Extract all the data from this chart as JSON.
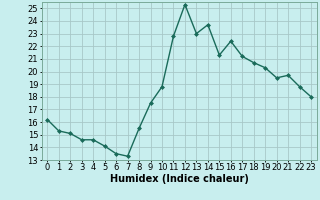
{
  "x": [
    0,
    1,
    2,
    3,
    4,
    5,
    6,
    7,
    8,
    9,
    10,
    11,
    12,
    13,
    14,
    15,
    16,
    17,
    18,
    19,
    20,
    21,
    22,
    23
  ],
  "y": [
    16.2,
    15.3,
    15.1,
    14.6,
    14.6,
    14.1,
    13.5,
    13.3,
    15.5,
    17.5,
    18.8,
    22.8,
    25.3,
    23.0,
    23.7,
    21.3,
    22.4,
    21.2,
    20.7,
    20.3,
    19.5,
    19.7,
    18.8,
    18.0
  ],
  "line_color": "#1a6b5a",
  "marker": "D",
  "marker_size": 2.0,
  "bg_color": "#c8eeee",
  "grid_color": "#a8c8c8",
  "xlabel": "Humidex (Indice chaleur)",
  "xlim": [
    -0.5,
    23.5
  ],
  "ylim": [
    13,
    25.5
  ],
  "yticks": [
    13,
    14,
    15,
    16,
    17,
    18,
    19,
    20,
    21,
    22,
    23,
    24,
    25
  ],
  "xticks": [
    0,
    1,
    2,
    3,
    4,
    5,
    6,
    7,
    8,
    9,
    10,
    11,
    12,
    13,
    14,
    15,
    16,
    17,
    18,
    19,
    20,
    21,
    22,
    23
  ],
  "axis_color": "#7aaa9a",
  "font_size": 6.0,
  "xlabel_size": 7.0,
  "lw": 1.0
}
